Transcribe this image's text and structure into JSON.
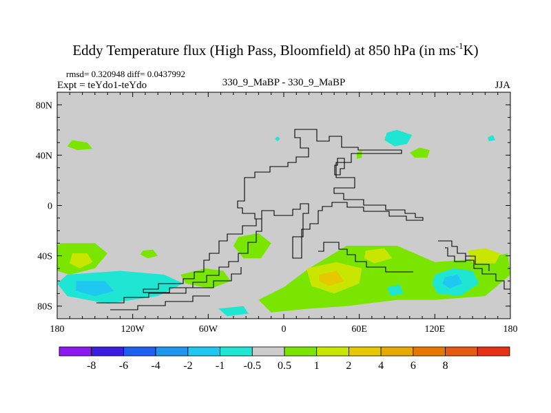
{
  "chart_data": {
    "type": "heatmap",
    "title_main": "Eddy Temperature flux (High Pass, Bloomfield) at 850 hPa (in ms",
    "title_sup": "-1",
    "title_end": "K)",
    "stats": "rmsd= 0.320948 diff= 0.0437992",
    "expt": "Expt = teYdo1-teYdo",
    "center_label": "330_9_MaBP - 330_9_MaBP",
    "season": "JJA",
    "xlim": [
      -180,
      180
    ],
    "ylim": [
      -90,
      90
    ],
    "x_ticks": [
      {
        "value": -180,
        "label": "180"
      },
      {
        "value": -120,
        "label": "120W"
      },
      {
        "value": -60,
        "label": "60W"
      },
      {
        "value": 0,
        "label": "0"
      },
      {
        "value": 60,
        "label": "60E"
      },
      {
        "value": 120,
        "label": "120E"
      },
      {
        "value": 180,
        "label": "180"
      }
    ],
    "y_ticks": [
      {
        "value": 80,
        "label": "80N"
      },
      {
        "value": 40,
        "label": "40N"
      },
      {
        "value": 0,
        "label": "0"
      },
      {
        "value": -40,
        "label": "40S"
      },
      {
        "value": -80,
        "label": "80S"
      }
    ],
    "colorbar": {
      "colors": [
        "#8a1aef",
        "#3c1ee0",
        "#1e5ef0",
        "#1e96f0",
        "#1ec8f0",
        "#1ee6d2",
        "#cccccc",
        "#7ae600",
        "#c8e600",
        "#e6c800",
        "#e6aa00",
        "#e67800",
        "#e65a14",
        "#e63214"
      ],
      "labels": [
        "-8",
        "-6",
        "-4",
        "-2",
        "-1",
        "-0.5",
        "0.5",
        "1",
        "2",
        "4",
        "6",
        "8"
      ]
    },
    "regions": [
      {
        "cls": "0.5-1",
        "color": "#7ae600",
        "poly": [
          [
            -177,
            -30
          ],
          [
            -150,
            -30
          ],
          [
            -140,
            -38
          ],
          [
            -150,
            -50
          ],
          [
            -170,
            -55
          ],
          [
            -180,
            -52
          ],
          [
            -180,
            -32
          ]
        ]
      },
      {
        "cls": "1-2",
        "color": "#c8e600",
        "poly": [
          [
            -168,
            -38
          ],
          [
            -156,
            -38
          ],
          [
            -152,
            -45
          ],
          [
            -162,
            -50
          ],
          [
            -170,
            -46
          ]
        ]
      },
      {
        "cls": "-1--0.5",
        "color": "#1ee6d2",
        "poly": [
          [
            -172,
            -55
          ],
          [
            -130,
            -52
          ],
          [
            -95,
            -55
          ],
          [
            -80,
            -62
          ],
          [
            -100,
            -72
          ],
          [
            -140,
            -78
          ],
          [
            -172,
            -72
          ],
          [
            -180,
            -62
          ]
        ]
      },
      {
        "cls": "-2--1",
        "color": "#1ec8f0",
        "poly": [
          [
            -165,
            -60
          ],
          [
            -142,
            -60
          ],
          [
            -135,
            -68
          ],
          [
            -150,
            -72
          ],
          [
            -165,
            -68
          ]
        ]
      },
      {
        "cls": "0.5-1",
        "color": "#7ae600",
        "poly": [
          [
            -82,
            -55
          ],
          [
            -62,
            -50
          ],
          [
            -48,
            -52
          ],
          [
            -42,
            -60
          ],
          [
            -58,
            -66
          ],
          [
            -78,
            -62
          ]
        ]
      },
      {
        "cls": "0.5-1",
        "color": "#7ae600",
        "poly": [
          [
            -112,
            -36
          ],
          [
            -104,
            -35
          ],
          [
            -100,
            -40
          ],
          [
            -108,
            -42
          ],
          [
            -114,
            -39
          ]
        ]
      },
      {
        "cls": "0.5-1",
        "color": "#7ae600",
        "poly": [
          [
            -36,
            -25
          ],
          [
            -20,
            -22
          ],
          [
            -10,
            -30
          ],
          [
            -18,
            -42
          ],
          [
            -32,
            -42
          ],
          [
            -40,
            -32
          ]
        ]
      },
      {
        "cls": "-1--0.5",
        "color": "#1ee6d2",
        "poly": [
          [
            -52,
            -82
          ],
          [
            -32,
            -80
          ],
          [
            -28,
            -86
          ],
          [
            -45,
            -88
          ]
        ]
      },
      {
        "cls": "0.5-1",
        "color": "#7ae600",
        "poly": [
          [
            -20,
            -75
          ],
          [
            0,
            -65
          ],
          [
            20,
            -50
          ],
          [
            50,
            -32
          ],
          [
            90,
            -32
          ],
          [
            120,
            -45
          ],
          [
            160,
            -42
          ],
          [
            178,
            -38
          ],
          [
            180,
            -55
          ],
          [
            160,
            -72
          ],
          [
            120,
            -75
          ],
          [
            90,
            -75
          ],
          [
            50,
            -80
          ],
          [
            20,
            -82
          ],
          [
            -10,
            -85
          ]
        ]
      },
      {
        "cls": "1-2",
        "color": "#c8e600",
        "poly": [
          [
            18,
            -50
          ],
          [
            42,
            -45
          ],
          [
            62,
            -50
          ],
          [
            60,
            -62
          ],
          [
            40,
            -70
          ],
          [
            22,
            -64
          ]
        ]
      },
      {
        "cls": "2-4",
        "color": "#e6c800",
        "poly": [
          [
            28,
            -55
          ],
          [
            42,
            -52
          ],
          [
            48,
            -60
          ],
          [
            36,
            -64
          ],
          [
            28,
            -60
          ]
        ]
      },
      {
        "cls": "1-2",
        "color": "#c8e600",
        "poly": [
          [
            65,
            -36
          ],
          [
            80,
            -34
          ],
          [
            86,
            -42
          ],
          [
            72,
            -46
          ],
          [
            64,
            -42
          ]
        ]
      },
      {
        "cls": "1-2",
        "color": "#c8e600",
        "poly": [
          [
            146,
            -36
          ],
          [
            160,
            -34
          ],
          [
            172,
            -38
          ],
          [
            168,
            -46
          ],
          [
            150,
            -46
          ]
        ]
      },
      {
        "cls": "-1--0.5",
        "color": "#1ee6d2",
        "poly": [
          [
            120,
            -55
          ],
          [
            135,
            -50
          ],
          [
            150,
            -52
          ],
          [
            155,
            -62
          ],
          [
            140,
            -72
          ],
          [
            122,
            -70
          ],
          [
            118,
            -62
          ]
        ]
      },
      {
        "cls": "-2--1",
        "color": "#1ec8f0",
        "poly": [
          [
            128,
            -57
          ],
          [
            138,
            -55
          ],
          [
            142,
            -62
          ],
          [
            132,
            -66
          ],
          [
            126,
            -62
          ]
        ]
      },
      {
        "cls": "-1--0.5",
        "color": "#1ee6d2",
        "poly": [
          [
            82,
            -65
          ],
          [
            92,
            -63
          ],
          [
            95,
            -70
          ],
          [
            85,
            -72
          ]
        ]
      },
      {
        "cls": "-1--0.5",
        "color": "#1ee6d2",
        "poly": [
          [
            80,
            52
          ],
          [
            88,
            47
          ],
          [
            98,
            49
          ],
          [
            102,
            56
          ],
          [
            90,
            60
          ],
          [
            82,
            58
          ]
        ]
      },
      {
        "cls": "0.5-1",
        "color": "#7ae600",
        "poly": [
          [
            100,
            42
          ],
          [
            108,
            46
          ],
          [
            116,
            44
          ],
          [
            114,
            38
          ],
          [
            104,
            38
          ]
        ]
      },
      {
        "cls": "0.5-1",
        "color": "#7ae600",
        "poly": [
          [
            -168,
            52
          ],
          [
            -156,
            50
          ],
          [
            -152,
            45
          ],
          [
            -164,
            44
          ],
          [
            -172,
            47
          ]
        ]
      },
      {
        "cls": "0.5-1",
        "color": "#7ae600",
        "poly": [
          [
            58,
            42
          ],
          [
            62,
            44
          ],
          [
            62,
            38
          ],
          [
            58,
            37
          ]
        ]
      },
      {
        "cls": "-1--0.5",
        "color": "#1ee6d2",
        "poly": [
          [
            162,
            54
          ],
          [
            166,
            56
          ],
          [
            168,
            52
          ],
          [
            163,
            51
          ]
        ]
      },
      {
        "cls": "-1--0.5",
        "color": "#1ee6d2",
        "poly": [
          [
            -7,
            53
          ],
          [
            -5,
            55
          ],
          [
            -3,
            53
          ],
          [
            -5,
            51
          ]
        ]
      }
    ]
  }
}
